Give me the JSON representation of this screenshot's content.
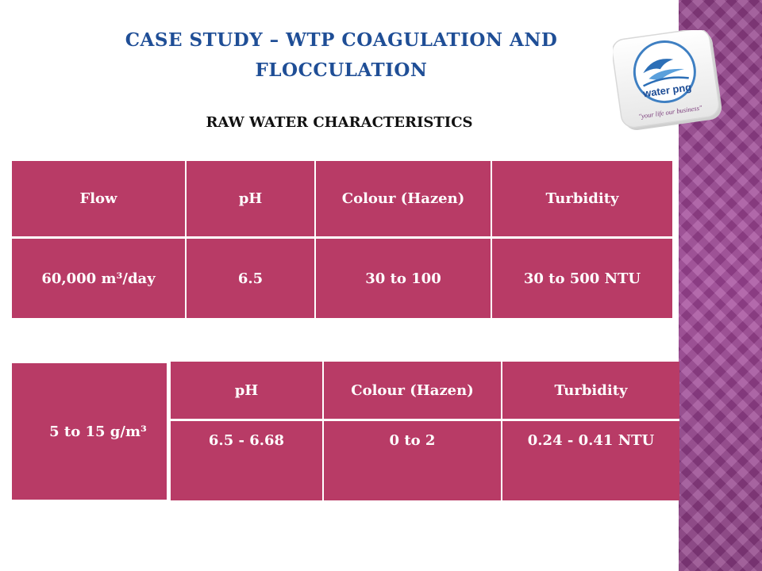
{
  "title_line1": "CASE STUDY – WTP COAGULATION AND",
  "title_line2": "FLOCCULATION",
  "subtitle": "RAW WATER CHARACTERISTICS",
  "logo": {
    "text": "water png",
    "tagline": "\"your life our business\""
  },
  "table1": {
    "headers": [
      "Flow",
      "pH",
      "Colour (Hazen)",
      "Turbidity"
    ],
    "row": [
      "60,000 m³/day",
      "6.5",
      "30 to 100",
      "30 to 500 NTU"
    ]
  },
  "dose_label": "5 to 15 g/m³",
  "table2": {
    "headers": [
      "pH",
      "Colour (Hazen)",
      "Turbidity"
    ],
    "row": [
      "6.5 - 6.68",
      "0 to 2",
      "0.24 - 0.41 NTU"
    ]
  },
  "colors": {
    "accent": "#b83b66",
    "title": "#1f4e96",
    "sidebar": "#9c4496"
  }
}
